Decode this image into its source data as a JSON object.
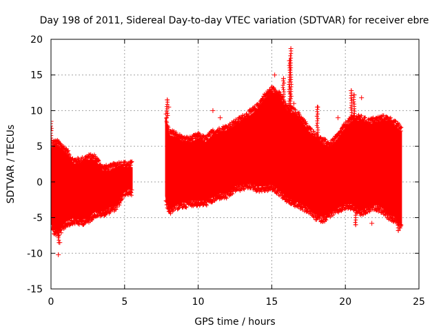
{
  "chart_data": {
    "type": "scatter",
    "title": "Day 198 of 2011, Sidereal Day-to-day VTEC variation (SDTVAR) for receiver ebre",
    "xlabel": "GPS time / hours",
    "ylabel": "SDTVAR / TECUs",
    "xlim": [
      0,
      25
    ],
    "ylim": [
      -15,
      20
    ],
    "xticks": [
      0,
      5,
      10,
      15,
      20,
      25
    ],
    "yticks": [
      -15,
      -10,
      -5,
      0,
      5,
      10,
      15,
      20
    ],
    "grid": true,
    "marker": "+",
    "color": "#ff0000",
    "envelope": {
      "description": "Dense band of '+' markers; upper and lower extent of SDTVAR values over time",
      "segments": [
        {
          "x": [
            0.0,
            0.15,
            0.5,
            1.0,
            1.5,
            2.0,
            2.5,
            3.0,
            3.5,
            4.0,
            4.5,
            5.0,
            5.5
          ],
          "upper": [
            3.5,
            5.0,
            5.0,
            4.0,
            2.5,
            2.5,
            3.0,
            3.0,
            1.5,
            1.5,
            2.0,
            2.0,
            2.0
          ],
          "lower": [
            -4.5,
            -6.5,
            -6.8,
            -5.5,
            -5.0,
            -5.2,
            -5.0,
            -4.0,
            -4.0,
            -3.5,
            -3.0,
            -1.0,
            -1.0
          ]
        },
        {
          "x": [
            7.8,
            8.0,
            8.5,
            9.0,
            9.5,
            10.0,
            10.5,
            11.0,
            11.5,
            12.0,
            12.5,
            13.0,
            13.5,
            14.0,
            14.5,
            15.0,
            15.5,
            16.0,
            16.5,
            17.0,
            17.5,
            18.0,
            18.5,
            19.0,
            19.5,
            20.0,
            20.5,
            21.0,
            21.5,
            22.0,
            22.5,
            23.0,
            23.5,
            23.8
          ],
          "upper": [
            9.0,
            6.5,
            6.2,
            5.5,
            5.5,
            6.0,
            5.5,
            6.5,
            6.8,
            7.2,
            7.8,
            8.5,
            9.2,
            10.0,
            11.5,
            12.5,
            12.0,
            10.0,
            9.5,
            8.5,
            7.0,
            6.0,
            5.2,
            4.8,
            6.0,
            7.5,
            8.5,
            8.5,
            8.0,
            8.2,
            8.5,
            8.3,
            7.5,
            7.0
          ],
          "lower": [
            -2.0,
            -3.8,
            -3.0,
            -2.8,
            -2.5,
            -2.5,
            -2.5,
            -2.0,
            -1.5,
            -1.5,
            -0.5,
            -0.3,
            0.0,
            -0.5,
            -0.5,
            -0.3,
            -1.0,
            -2.0,
            -2.5,
            -3.0,
            -3.5,
            -4.5,
            -4.8,
            -4.0,
            -3.5,
            -3.0,
            -3.0,
            -4.0,
            -3.5,
            -3.0,
            -3.5,
            -4.5,
            -5.0,
            -6.0
          ]
        }
      ]
    },
    "spikes": [
      {
        "x": 0.0,
        "y": 8.5
      },
      {
        "x": 0.0,
        "y": 7.2
      },
      {
        "x": 0.5,
        "y": -10.2
      },
      {
        "x": 0.6,
        "y": -8.5
      },
      {
        "x": 7.9,
        "y": 11.5
      },
      {
        "x": 8.0,
        "y": 10.5
      },
      {
        "x": 11.0,
        "y": 10.0
      },
      {
        "x": 11.5,
        "y": 9.0
      },
      {
        "x": 15.2,
        "y": 15.0
      },
      {
        "x": 15.8,
        "y": 14.5
      },
      {
        "x": 16.2,
        "y": 17.0
      },
      {
        "x": 16.3,
        "y": 18.7
      },
      {
        "x": 16.5,
        "y": 11.0
      },
      {
        "x": 16.5,
        "y": -2.5
      },
      {
        "x": 16.5,
        "y": -3.2
      },
      {
        "x": 18.1,
        "y": -4.5
      },
      {
        "x": 18.1,
        "y": 10.5
      },
      {
        "x": 19.5,
        "y": 9.0
      },
      {
        "x": 20.4,
        "y": 12.8
      },
      {
        "x": 20.6,
        "y": 12.2
      },
      {
        "x": 21.1,
        "y": 11.8
      },
      {
        "x": 20.7,
        "y": -6.0
      },
      {
        "x": 21.8,
        "y": -5.8
      },
      {
        "x": 23.6,
        "y": -6.8
      }
    ]
  }
}
